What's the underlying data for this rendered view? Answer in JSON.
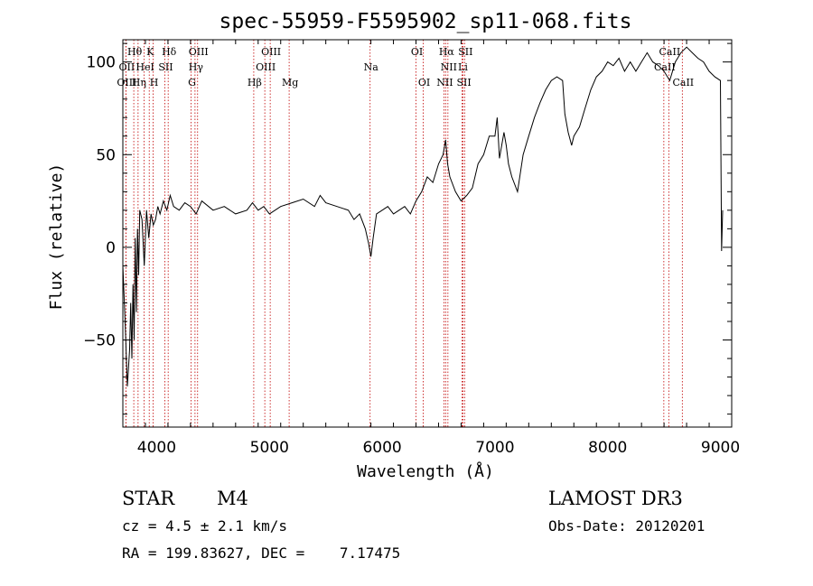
{
  "chart_data": {
    "type": "line",
    "title": "spec-55959-F5595902_sp11-068.fits",
    "xlabel": "Wavelength (Å)",
    "ylabel": "Flux (relative)",
    "xlim": [
      3700,
      9100
    ],
    "ylim": [
      -97,
      112
    ],
    "x_ticks": [
      4000,
      5000,
      6000,
      7000,
      8000,
      9000
    ],
    "y_ticks": [
      -50,
      0,
      50,
      100
    ],
    "x_tick_labels": [
      "4000",
      "5000",
      "6000",
      "7000",
      "8000",
      "9000"
    ],
    "y_tick_labels": [
      "−50",
      "0",
      "50",
      "100"
    ],
    "series": [
      {
        "name": "flux",
        "x": [
          3700,
          3720,
          3740,
          3760,
          3770,
          3780,
          3790,
          3800,
          3810,
          3820,
          3830,
          3840,
          3850,
          3870,
          3890,
          3910,
          3930,
          3950,
          3970,
          3990,
          4010,
          4030,
          4060,
          4090,
          4120,
          4150,
          4200,
          4250,
          4300,
          4350,
          4400,
          4500,
          4600,
          4700,
          4800,
          4850,
          4900,
          4950,
          5000,
          5100,
          5200,
          5300,
          5400,
          5450,
          5500,
          5600,
          5700,
          5750,
          5800,
          5850,
          5880,
          5900,
          5920,
          5950,
          6000,
          6050,
          6100,
          6150,
          6200,
          6250,
          6300,
          6350,
          6400,
          6450,
          6500,
          6540,
          6563,
          6580,
          6600,
          6650,
          6700,
          6750,
          6800,
          6850,
          6900,
          6950,
          7000,
          7020,
          7040,
          7060,
          7080,
          7100,
          7120,
          7150,
          7200,
          7250,
          7300,
          7350,
          7400,
          7450,
          7500,
          7550,
          7600,
          7620,
          7650,
          7680,
          7700,
          7750,
          7800,
          7850,
          7900,
          7950,
          8000,
          8050,
          8100,
          8150,
          8200,
          8250,
          8300,
          8350,
          8400,
          8450,
          8500,
          8550,
          8600,
          8650,
          8700,
          8750,
          8800,
          8850,
          8900,
          8950,
          9000,
          9010,
          9020
        ],
        "values": [
          -10,
          -40,
          -75,
          -55,
          -30,
          -60,
          -20,
          -50,
          5,
          -35,
          10,
          -15,
          20,
          15,
          -10,
          20,
          5,
          18,
          12,
          15,
          22,
          18,
          25,
          20,
          28,
          22,
          20,
          24,
          22,
          18,
          25,
          20,
          22,
          18,
          20,
          24,
          20,
          22,
          18,
          22,
          24,
          26,
          22,
          28,
          24,
          22,
          20,
          15,
          18,
          10,
          2,
          -5,
          5,
          18,
          20,
          22,
          18,
          20,
          22,
          18,
          25,
          30,
          38,
          35,
          45,
          50,
          58,
          45,
          38,
          30,
          25,
          28,
          32,
          45,
          50,
          60,
          60,
          70,
          48,
          55,
          62,
          55,
          45,
          38,
          30,
          50,
          60,
          70,
          78,
          85,
          90,
          92,
          90,
          72,
          62,
          55,
          60,
          65,
          75,
          85,
          92,
          95,
          100,
          98,
          102,
          95,
          100,
          95,
          100,
          105,
          100,
          98,
          95,
          90,
          100,
          105,
          108,
          105,
          102,
          100,
          95,
          92,
          90,
          -2,
          20
        ],
        "color": "#000000"
      }
    ],
    "line_markers": [
      {
        "name": "Hθ",
        "x": 3797,
        "row": 0
      },
      {
        "name": "K",
        "x": 3934,
        "row": 0
      },
      {
        "name": "Hδ",
        "x": 4102,
        "row": 0
      },
      {
        "name": "OIII",
        "x": 4363,
        "row": 0
      },
      {
        "name": "OIII",
        "x": 5007,
        "row": 0
      },
      {
        "name": "OI",
        "x": 6300,
        "row": 0
      },
      {
        "name": "Hα",
        "x": 6563,
        "row": 0
      },
      {
        "name": "SII",
        "x": 6731,
        "row": 0
      },
      {
        "name": "CaII",
        "x": 8542,
        "row": 0
      },
      {
        "name": "OII",
        "x": 3727,
        "row": 1
      },
      {
        "name": "HeI",
        "x": 3889,
        "row": 1
      },
      {
        "name": "SII",
        "x": 4072,
        "row": 1
      },
      {
        "name": "Hγ",
        "x": 4340,
        "row": 1
      },
      {
        "name": "OIII",
        "x": 4959,
        "row": 1
      },
      {
        "name": "Na",
        "x": 5893,
        "row": 1
      },
      {
        "name": "NII",
        "x": 6583,
        "row": 1
      },
      {
        "name": "Li",
        "x": 6708,
        "row": 1
      },
      {
        "name": "CaII",
        "x": 8498,
        "row": 1
      },
      {
        "name": "OIII",
        "x": 3727,
        "row": 2
      },
      {
        "name": "Hη",
        "x": 3835,
        "row": 2
      },
      {
        "name": "H",
        "x": 3969,
        "row": 2
      },
      {
        "name": "G",
        "x": 4305,
        "row": 2
      },
      {
        "name": "Hβ",
        "x": 4861,
        "row": 2
      },
      {
        "name": "Mg",
        "x": 5175,
        "row": 2
      },
      {
        "name": "OI",
        "x": 6364,
        "row": 2
      },
      {
        "name": "NII",
        "x": 6548,
        "row": 2
      },
      {
        "name": "SII",
        "x": 6717,
        "row": 2
      },
      {
        "name": "CaII",
        "x": 8662,
        "row": 2
      }
    ],
    "marker_line_color": "#c00000"
  },
  "info": {
    "object_class": "STAR",
    "subclass": "M4",
    "survey": "LAMOST DR3",
    "cz": "cz = 4.5 ± 2.1 km/s",
    "obs_date": "Obs-Date: 20120201",
    "coords": "RA = 199.83627, DEC =    7.17475"
  }
}
